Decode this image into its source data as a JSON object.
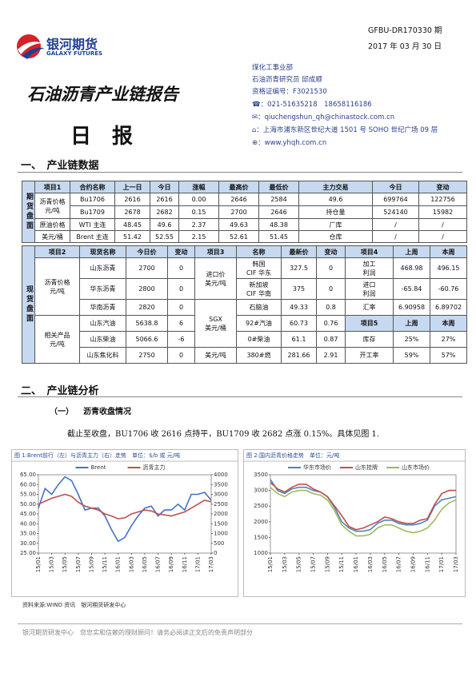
{
  "header": {
    "logo_cn": "银河期货",
    "logo_en": "GALAXY FUTURES",
    "report_no": "GFBU-DR170330 期",
    "date": "2017 年 03 月 30 日",
    "title": "石油沥青产业链报告",
    "subtitle": "日　报"
  },
  "contact": {
    "dept": "煤化工事业部",
    "analyst": "石油沥青研究员 邱成顺",
    "license": "资格证编号：F3021530",
    "phone": "021-51635218　18658116186",
    "email": "qiuchengshun_qh@chinastock.com.cn",
    "address": "上海市浦东新区世纪大道 1501 号 SOHO 世纪广场 09 层",
    "website": "www.yhqh.com.cn"
  },
  "section1": {
    "heading": "一、　产业链数据",
    "futures": {
      "side": "期货盘面",
      "columns": [
        "项目1",
        "合约名称",
        "上一日",
        "今日",
        "涨幅",
        "最高价",
        "最低价",
        "主力交易",
        "今日",
        "变动"
      ],
      "items": [
        [
          "沥青价格",
          "元/吨"
        ],
        [
          "原油价格"
        ],
        [
          "美元/桶"
        ]
      ],
      "rows": [
        [
          "Bu1706",
          "2616",
          "2616",
          "0.00",
          "2646",
          "2584",
          "49.6",
          "699764",
          "122756"
        ],
        [
          "Bu1709",
          "2678",
          "2682",
          "0.15",
          "2700",
          "2646",
          "持仓量",
          "524140",
          "15982"
        ],
        [
          "WTI 主连",
          "48.45",
          "49.6",
          "2.37",
          "49.63",
          "48.38",
          "厂库",
          "/",
          "/"
        ],
        [
          "Brent 主连",
          "51.42",
          "52.55",
          "2.15",
          "52.61",
          "51.45",
          "仓库",
          "/",
          "/"
        ]
      ]
    },
    "spot": {
      "side": "现货盘面",
      "columns": [
        "项目2",
        "现货名称",
        "今日价",
        "变动",
        "项目3",
        "名称",
        "最新价",
        "变动",
        "项目4",
        "上周",
        "本周"
      ],
      "item2": [
        [
          "沥青价格",
          "元/吨"
        ],
        [
          "相关产品",
          "元/吨"
        ]
      ],
      "item3": [
        [
          "进口价",
          "美元/吨"
        ],
        [
          "SGX",
          "美元/桶"
        ],
        [
          "美元/吨"
        ]
      ],
      "rows": [
        [
          "山东沥青",
          "2700",
          "0",
          [
            "韩国",
            "CIF 华东"
          ],
          "327.5",
          "0",
          [
            "加工",
            "利润"
          ],
          "468.98",
          "496.15"
        ],
        [
          "华东沥青",
          "2800",
          "0",
          [
            "新加坡",
            "CIF 华南"
          ],
          "375",
          "0",
          [
            "进口",
            "利润"
          ],
          "-65.84",
          "-60.76"
        ],
        [
          "华南沥青",
          "2820",
          "0",
          "石脑油",
          "49.33",
          "0.8",
          "汇率",
          "6.90958",
          "6.89702"
        ],
        [
          "山东汽油",
          "5638.8",
          "6",
          "92#汽油",
          "60.73",
          "0.76",
          "项目5",
          "上周",
          "本周"
        ],
        [
          "山东柴油",
          "5066.6",
          "-6",
          "0#柴油",
          "61.1",
          "0.87",
          "库存",
          "25%",
          "27%"
        ],
        [
          "山东焦化料",
          "2750",
          "0",
          "380#燃",
          "281.66",
          "2.91",
          "开工率",
          "59%",
          "57%"
        ]
      ]
    }
  },
  "section2": {
    "heading": "二、　产业链分析",
    "sub_no": "（一）",
    "sub_title": "沥青收盘情况",
    "text": "截止至收盘，BU1706 收 2616 点持平，BU1709 收 2682 点涨 0.15%。具体见图 1."
  },
  "chart_data": [
    {
      "type": "line",
      "title": "图 1:Brent前行（左）与沥青主力（右）走势　单位：$/b 或 元/吨",
      "categories": [
        "15/01",
        null,
        "15/03",
        null,
        "15/05",
        null,
        "15/07",
        null,
        "15/09",
        null,
        "15/11",
        null,
        "16/01",
        null,
        "16/03",
        null,
        "16/05",
        null,
        "16/07",
        null,
        "16/09",
        null,
        "16/11",
        null,
        "17/01",
        null,
        "17/03"
      ],
      "series": [
        {
          "name": "Brent",
          "color": "#4472c4",
          "values": [
            48,
            58,
            55,
            60,
            64,
            62,
            55,
            47,
            48,
            48,
            44,
            37,
            31,
            33,
            39,
            44,
            48,
            49,
            44,
            47,
            47,
            50,
            47,
            55,
            55,
            56,
            52
          ]
        },
        {
          "name": "沥青主力",
          "color": "#c0504d",
          "axis": "y2",
          "values": [
            2500,
            2650,
            2800,
            2900,
            3000,
            2900,
            2600,
            2400,
            2300,
            2200,
            2000,
            1900,
            1750,
            1800,
            2000,
            2100,
            2200,
            2150,
            2000,
            1950,
            1900,
            2000,
            2100,
            2300,
            2500,
            2700,
            2620
          ]
        }
      ],
      "ylim": [
        25,
        65
      ],
      "yticks": [
        {
          "value": 25,
          "label": "25.00"
        },
        {
          "value": 30,
          "label": "30.00"
        },
        {
          "value": 35,
          "label": "35.00"
        },
        {
          "value": 40,
          "label": "40.00"
        },
        {
          "value": 45,
          "label": "45.00"
        },
        {
          "value": 50,
          "label": "50.00"
        },
        {
          "value": 55,
          "label": "55.00"
        },
        {
          "value": 60,
          "label": "60.00"
        },
        {
          "value": 65,
          "label": "65.00"
        }
      ],
      "y2lim": [
        0,
        4000
      ],
      "y2ticks": [
        0,
        500,
        1000,
        1500,
        2000,
        2500,
        3000,
        3500,
        4000
      ],
      "legend": "top"
    },
    {
      "type": "line",
      "title": "图 2:国内沥青价格走势　单位：元/吨",
      "categories": [
        "15/01",
        null,
        "15/03",
        null,
        "15/05",
        null,
        "15/07",
        null,
        "15/09",
        null,
        "15/11",
        null,
        "16/01",
        null,
        "16/03",
        null,
        "16/05",
        null,
        "16/07",
        null,
        "16/09",
        null,
        "16/11",
        null,
        "17/01",
        null,
        "17/03"
      ],
      "series": [
        {
          "name": "华东市场价",
          "color": "#4f81bd",
          "values": [
            3350,
            3000,
            2900,
            3050,
            3100,
            3100,
            3000,
            2950,
            2800,
            2450,
            2000,
            1800,
            1700,
            1700,
            1750,
            1950,
            2050,
            2050,
            1950,
            1900,
            1900,
            1950,
            2050,
            2500,
            2700,
            2750,
            2800
          ]
        },
        {
          "name": "山东挂牌",
          "color": "#c0504d",
          "values": [
            3250,
            3050,
            2950,
            3100,
            3200,
            3200,
            3050,
            2950,
            2800,
            2500,
            2200,
            1850,
            1750,
            1800,
            1900,
            2000,
            2150,
            2100,
            2000,
            1950,
            1950,
            2050,
            2100,
            2550,
            2900,
            3000,
            3000
          ]
        },
        {
          "name": "山东市场价",
          "color": "#9bbb59",
          "values": [
            3100,
            2900,
            2800,
            2950,
            3000,
            3000,
            2900,
            2850,
            2700,
            2350,
            1900,
            1700,
            1550,
            1550,
            1600,
            1800,
            1900,
            1900,
            1800,
            1700,
            1650,
            1700,
            1800,
            2050,
            2400,
            2600,
            2700
          ]
        }
      ],
      "ylim": [
        1000,
        3500
      ],
      "yticks": [
        1000,
        1500,
        2000,
        2500,
        3000,
        3500
      ],
      "legend": "top"
    }
  ],
  "source": "资料来源:WIND 资讯　银河期货研发中心",
  "footer": "银河期货研发中心　您忠实和信赖的理财顾问！请务必阅读正文后的免责声明部分"
}
